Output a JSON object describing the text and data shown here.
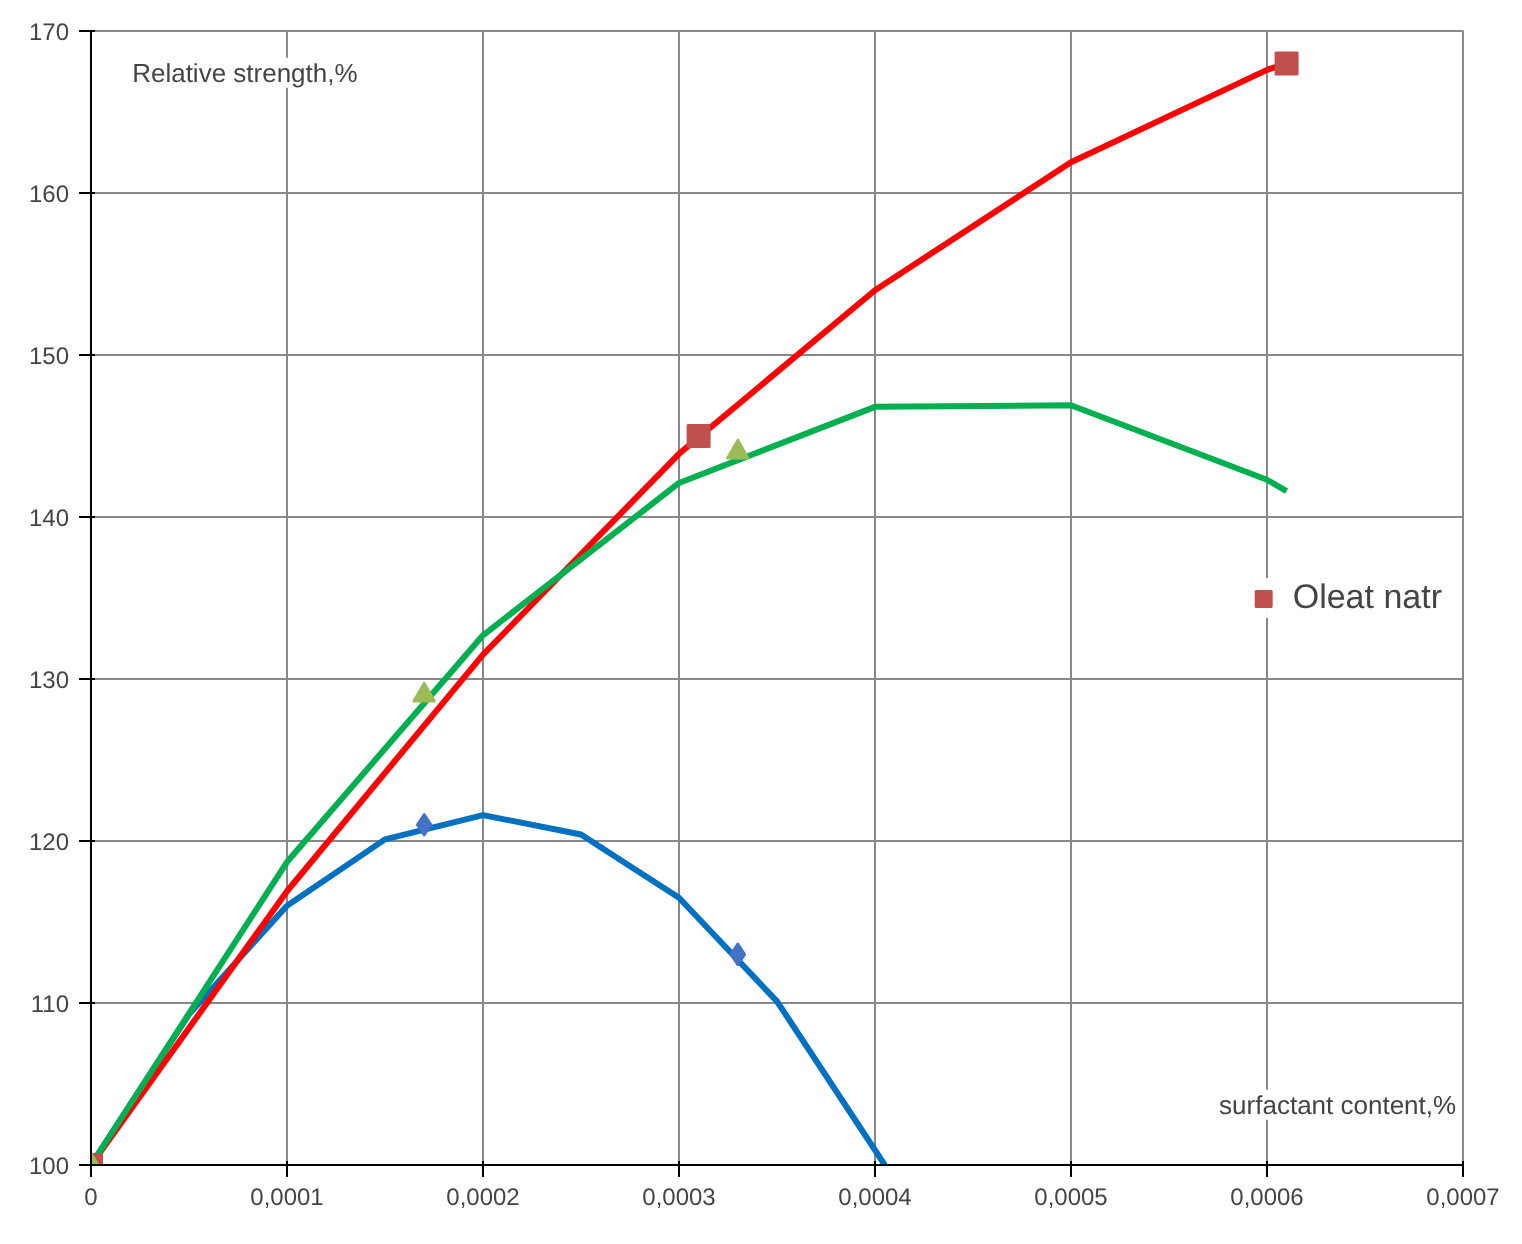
{
  "chart_data": {
    "type": "scatter",
    "xlabel": "surfactant content,%",
    "ylabel": "Relative strength,%",
    "xlim": [
      0,
      0.0007
    ],
    "ylim": [
      100,
      170
    ],
    "xticks": [
      {
        "value": 0,
        "label": "0"
      },
      {
        "value": 0.0001,
        "label": "0,0001"
      },
      {
        "value": 0.0002,
        "label": "0,0002"
      },
      {
        "value": 0.0003,
        "label": "0,0003"
      },
      {
        "value": 0.0004,
        "label": "0,0004"
      },
      {
        "value": 0.0005,
        "label": "0,0005"
      },
      {
        "value": 0.0006,
        "label": "0,0006"
      },
      {
        "value": 0.0007,
        "label": "0,0007"
      }
    ],
    "yticks": [
      100,
      110,
      120,
      130,
      140,
      150,
      160,
      170
    ],
    "grid": true,
    "legend": "right",
    "series": [
      {
        "type": "line",
        "marker": "none",
        "color": "#0070c0",
        "x": [
          0,
          5e-05,
          0.0001,
          0.00015,
          0.0002,
          0.00025,
          0.0003,
          0.00035,
          0.000405
        ],
        "values": [
          100,
          109.3,
          116.0,
          120.1,
          121.6,
          120.4,
          116.5,
          110.1,
          100
        ]
      },
      {
        "type": "line",
        "marker": "none",
        "color": "#ff0000",
        "x": [
          0,
          0.0001,
          0.0002,
          0.0003,
          0.0004,
          0.0005,
          0.0006,
          0.00061
        ],
        "values": [
          100,
          116.9,
          131.5,
          143.9,
          154.0,
          161.9,
          167.6,
          168
        ]
      },
      {
        "type": "line",
        "marker": "none",
        "color": "#00b050",
        "x": [
          0,
          0.0001,
          0.0002,
          0.0003,
          0.0004,
          0.0005,
          0.0006,
          0.00061
        ],
        "values": [
          100,
          118.7,
          132.7,
          142.1,
          146.8,
          146.9,
          142.3,
          141.6
        ]
      },
      {
        "marker": "diamond",
        "color": "#4472c4",
        "x": [
          0.00017,
          0.00033
        ],
        "values": [
          121,
          113
        ]
      },
      {
        "marker": "square",
        "name": "Oleat natr",
        "color": "#c0504d",
        "x": [
          0,
          0.00031,
          0.00061
        ],
        "values": [
          100,
          145,
          168
        ]
      },
      {
        "marker": "triangle",
        "color": "#9bbb59",
        "x": [
          0,
          0.00017,
          0.00033
        ],
        "values": [
          100,
          129,
          144
        ]
      }
    ]
  }
}
